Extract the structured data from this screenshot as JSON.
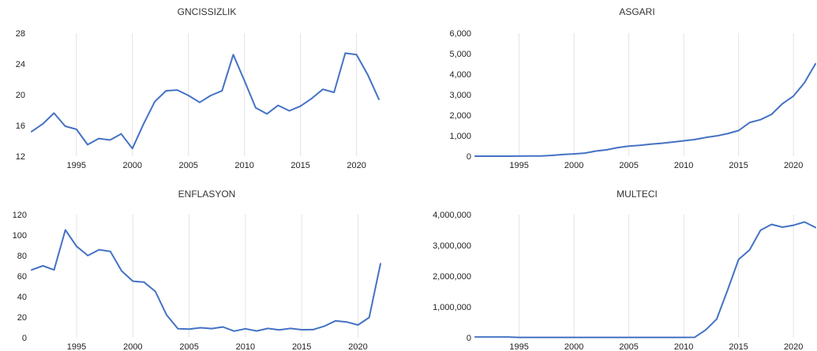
{
  "colors": {
    "series": "#4472c4",
    "grid": "#e3e3e3",
    "text": "#222222"
  },
  "chart_data": [
    {
      "type": "line",
      "title": "GNCISSIZLIK",
      "x": [
        1991,
        1992,
        1993,
        1994,
        1995,
        1996,
        1997,
        1998,
        1999,
        2000,
        2001,
        2002,
        2003,
        2004,
        2005,
        2006,
        2007,
        2008,
        2009,
        2010,
        2011,
        2012,
        2013,
        2014,
        2015,
        2016,
        2017,
        2018,
        2019,
        2020,
        2021,
        2022
      ],
      "series": [
        {
          "values": [
            15.2,
            16.2,
            17.6,
            15.9,
            15.5,
            13.5,
            14.3,
            14.1,
            14.9,
            13.0,
            16.2,
            19.1,
            20.5,
            20.6,
            19.9,
            19.0,
            19.9,
            20.5,
            25.2,
            21.8,
            18.3,
            17.5,
            18.6,
            17.9,
            18.5,
            19.5,
            20.7,
            20.3,
            25.4,
            25.2,
            22.6,
            19.4
          ]
        }
      ],
      "xticks": [
        1995,
        2000,
        2005,
        2010,
        2015,
        2020
      ],
      "yticks": [
        12,
        16,
        20,
        24,
        28
      ],
      "ytick_labels": [
        "12",
        "16",
        "20",
        "24",
        "28"
      ],
      "xlim": [
        1991,
        2022
      ],
      "ylim": [
        12,
        28
      ],
      "grid": "vertical"
    },
    {
      "type": "line",
      "title": "ASGARI",
      "x": [
        1991,
        1992,
        1993,
        1994,
        1995,
        1996,
        1997,
        1998,
        1999,
        2000,
        2001,
        2002,
        2003,
        2004,
        2005,
        2006,
        2007,
        2008,
        2009,
        2010,
        2011,
        2012,
        2013,
        2014,
        2015,
        2016,
        2017,
        2018,
        2019,
        2020,
        2021,
        2022
      ],
      "series": [
        {
          "values": [
            0,
            0,
            0,
            1,
            2,
            6,
            10,
            40,
            80,
            110,
            150,
            250,
            310,
            420,
            490,
            530,
            590,
            630,
            690,
            750,
            810,
            910,
            990,
            1100,
            1250,
            1640,
            1780,
            2040,
            2560,
            2930,
            3580,
            4500
          ]
        }
      ],
      "xticks": [
        1995,
        2000,
        2005,
        2010,
        2015,
        2020
      ],
      "yticks": [
        0,
        1000,
        2000,
        3000,
        4000,
        5000,
        6000
      ],
      "ytick_labels": [
        "0",
        "1,000",
        "2,000",
        "3,000",
        "4,000",
        "5,000",
        "6,000"
      ],
      "xlim": [
        1991,
        2022
      ],
      "ylim": [
        0,
        6000
      ],
      "grid": "vertical"
    },
    {
      "type": "line",
      "title": "ENFLASYON",
      "x": [
        1991,
        1992,
        1993,
        1994,
        1995,
        1996,
        1997,
        1998,
        1999,
        2000,
        2001,
        2002,
        2003,
        2004,
        2005,
        2006,
        2007,
        2008,
        2009,
        2010,
        2011,
        2012,
        2013,
        2014,
        2015,
        2016,
        2017,
        2018,
        2019,
        2020,
        2021,
        2022
      ],
      "series": [
        {
          "values": [
            66,
            70,
            66,
            105,
            89,
            80,
            85.7,
            84,
            65,
            55,
            54,
            45,
            22,
            8.6,
            8.2,
            9.6,
            8.8,
            10.4,
            6.3,
            8.6,
            6.5,
            8.9,
            7.5,
            8.9,
            7.7,
            7.8,
            11.1,
            16.3,
            15.2,
            12.3,
            19.6,
            72
          ]
        }
      ],
      "xticks": [
        1995,
        2000,
        2005,
        2010,
        2015,
        2020
      ],
      "yticks": [
        0,
        20,
        40,
        60,
        80,
        100,
        120
      ],
      "ytick_labels": [
        "0",
        "20",
        "40",
        "60",
        "80",
        "100",
        "120"
      ],
      "xlim": [
        1991,
        2022
      ],
      "ylim": [
        0,
        120
      ],
      "grid": "vertical"
    },
    {
      "type": "line",
      "title": "MULTECI",
      "x": [
        1991,
        1992,
        1993,
        1994,
        1995,
        1996,
        1997,
        1998,
        1999,
        2000,
        2001,
        2002,
        2003,
        2004,
        2005,
        2006,
        2007,
        2008,
        2009,
        2010,
        2011,
        2012,
        2013,
        2014,
        2015,
        2016,
        2017,
        2018,
        2019,
        2020,
        2021,
        2022
      ],
      "series": [
        {
          "values": [
            20000,
            20000,
            20000,
            20000,
            5000,
            5000,
            5000,
            5000,
            5000,
            5000,
            5000,
            5000,
            5000,
            5000,
            5000,
            5000,
            5000,
            5000,
            5000,
            5000,
            10000,
            250000,
            600000,
            1550000,
            2540000,
            2850000,
            3490000,
            3680000,
            3590000,
            3650000,
            3760000,
            3580000
          ]
        }
      ],
      "xticks": [
        1995,
        2000,
        2005,
        2010,
        2015,
        2020
      ],
      "yticks": [
        0,
        1000000,
        2000000,
        3000000,
        4000000
      ],
      "ytick_labels": [
        "0",
        "1,000,000",
        "2,000,000",
        "3,000,000",
        "4,000,000"
      ],
      "xlim": [
        1991,
        2022
      ],
      "ylim": [
        0,
        4000000
      ],
      "grid": "vertical"
    }
  ]
}
